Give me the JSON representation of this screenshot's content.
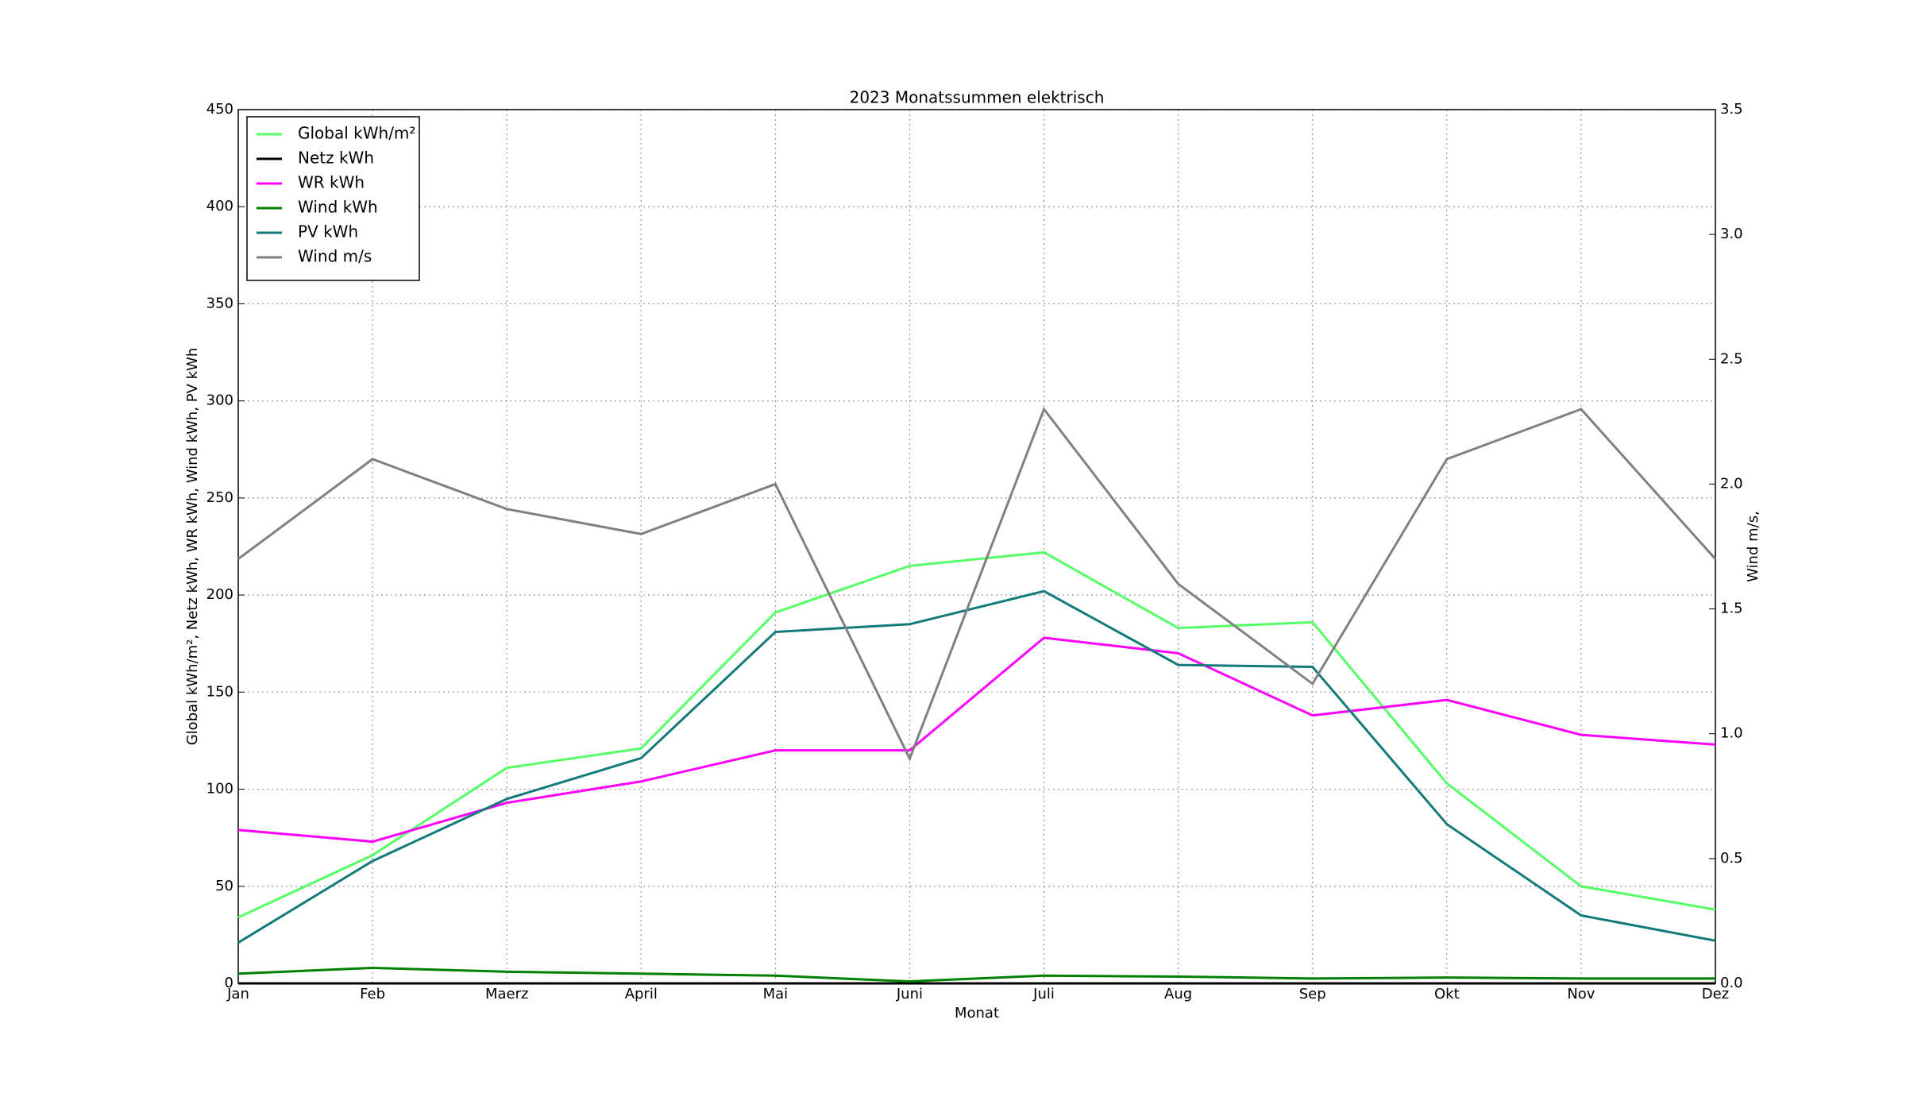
{
  "chart_data": {
    "type": "line",
    "title": "2023 Monatssummen elektrisch",
    "x_label": "Monat",
    "y_label": "Global kWh/m², Netz kWh, WR kWh, Wind kWh, PV kWh",
    "y2_label": "Wind m/s,",
    "categories": [
      "Jan",
      "Feb",
      "Maerz",
      "April",
      "Mai",
      "Juni",
      "Juli",
      "Aug",
      "Sep",
      "Okt",
      "Nov",
      "Dez"
    ],
    "ylim": [
      0,
      450
    ],
    "yticks": [
      0,
      50,
      100,
      150,
      200,
      250,
      300,
      350,
      400,
      450
    ],
    "y2lim": [
      0,
      3.5
    ],
    "y2ticks": [
      {
        "value": 0,
        "label": "0.0"
      },
      0.5,
      {
        "value": 1,
        "label": "1.0"
      },
      1.5,
      {
        "value": 2,
        "label": "2.0"
      },
      2.5,
      {
        "value": 3,
        "label": "3.0"
      },
      3.5
    ],
    "grid": true,
    "legend": "upper left",
    "series": [
      {
        "name": "Global kWh/m²",
        "color": "#55ff66",
        "values": [
          34,
          66,
          111,
          121,
          191,
          215,
          222,
          183,
          186,
          103,
          50,
          38
        ]
      },
      {
        "name": "Netz kWh",
        "color": "#000000",
        "values": [
          0,
          0,
          0,
          0,
          0,
          0,
          0,
          0,
          0,
          0,
          0,
          0
        ]
      },
      {
        "name": "WR kWh",
        "color": "#ff00ff",
        "values": [
          79,
          73,
          93,
          104,
          120,
          120,
          178,
          170,
          138,
          146,
          128,
          123
        ]
      },
      {
        "name": "Wind kWh",
        "color": "#008000",
        "values": [
          5,
          8,
          6,
          5,
          4,
          1,
          4,
          3.5,
          2.5,
          3,
          2.5,
          2.5
        ]
      },
      {
        "name": "PV kWh",
        "color": "#137a7a",
        "values": [
          21,
          63,
          95,
          116,
          181,
          185,
          202,
          164,
          163,
          82,
          35,
          22
        ]
      },
      {
        "name": "Wind m/s",
        "color": "#808080",
        "axis": "y2",
        "values": [
          1.7,
          2.1,
          1.9,
          1.8,
          2.0,
          0.9,
          2.3,
          1.6,
          1.2,
          2.1,
          2.3,
          1.7
        ]
      }
    ]
  }
}
